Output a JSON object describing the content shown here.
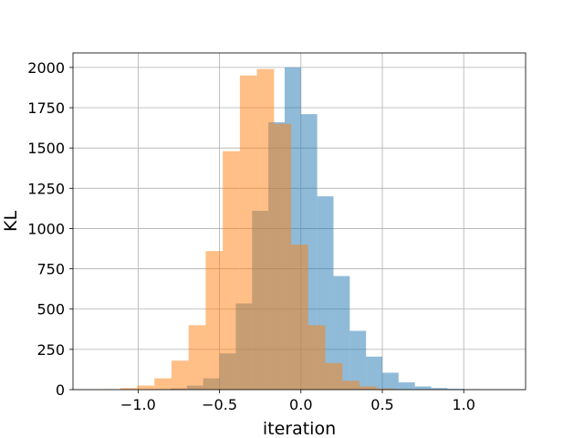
{
  "chart_data": {
    "type": "bar",
    "title": "",
    "xlabel": "iteration",
    "ylabel": "KL",
    "xlim": [
      -1.4,
      1.38
    ],
    "ylim": [
      0,
      2090
    ],
    "xticks": [
      -1.0,
      -0.5,
      0.0,
      0.5,
      1.0
    ],
    "xtick_labels": [
      "−1.0",
      "−0.5",
      "0.0",
      "0.5",
      "1.0"
    ],
    "yticks": [
      0,
      250,
      500,
      750,
      1000,
      1250,
      1500,
      1750,
      2000
    ],
    "ytick_labels": [
      "0",
      "250",
      "500",
      "750",
      "1000",
      "1250",
      "1500",
      "1750",
      "2000"
    ],
    "grid": true,
    "series": [
      {
        "color": "#1f77b4",
        "alpha": 0.5,
        "bin_width": 0.1,
        "bin_starts": [
          -0.9,
          -0.8,
          -0.7,
          -0.6,
          -0.5,
          -0.4,
          -0.3,
          -0.2,
          -0.1,
          0.0,
          0.1,
          0.2,
          0.3,
          0.4,
          0.5,
          0.6,
          0.7,
          0.8,
          0.9,
          1.0
        ],
        "values": [
          3,
          8,
          25,
          70,
          225,
          535,
          1110,
          1660,
          2000,
          1710,
          1200,
          705,
          365,
          205,
          105,
          45,
          20,
          10,
          5,
          2
        ]
      },
      {
        "color": "#ff7f0e",
        "alpha": 0.5,
        "bin_width": 0.105,
        "bin_starts": [
          -1.215,
          -1.11,
          -1.005,
          -0.9,
          -0.795,
          -0.69,
          -0.585,
          -0.48,
          -0.375,
          -0.27,
          -0.165,
          -0.06,
          0.045,
          0.15,
          0.255,
          0.36,
          0.465,
          0.57,
          0.675,
          0.78
        ],
        "values": [
          3,
          10,
          25,
          70,
          180,
          400,
          860,
          1480,
          1950,
          1990,
          1650,
          900,
          400,
          165,
          55,
          20,
          7,
          3,
          1,
          1
        ]
      }
    ]
  }
}
